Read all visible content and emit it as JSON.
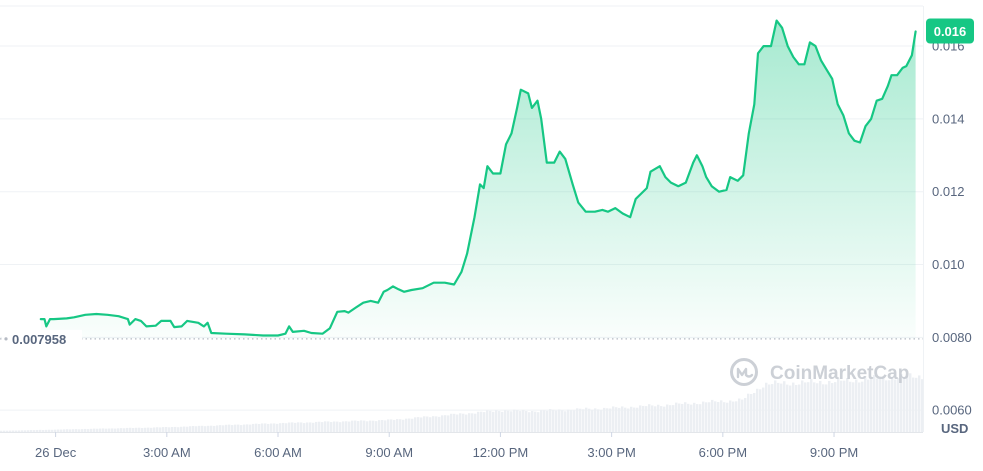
{
  "colors": {
    "line": "#16c784",
    "badge": "#16c784",
    "grid": "#eff2f5",
    "text": "#58667e",
    "volume": "#eceff3",
    "reference": "#b5bac3",
    "watermark": "#c7cbd2"
  },
  "watermark": {
    "icon": "coinmarketcap-logo-icon",
    "text": "CoinMarketCap"
  },
  "chart_data": {
    "type": "area",
    "title": "",
    "xlabel": "",
    "ylabel": "",
    "currency_label": "USD",
    "x_axis": {
      "unit": "hours since 26 Dec 00:00",
      "range": [
        -1.5,
        23.4
      ],
      "ticks": [
        {
          "x": 0,
          "label": "26 Dec"
        },
        {
          "x": 3,
          "label": "3:00 AM"
        },
        {
          "x": 6,
          "label": "6:00 AM"
        },
        {
          "x": 9,
          "label": "9:00 AM"
        },
        {
          "x": 12,
          "label": "12:00 PM"
        },
        {
          "x": 15,
          "label": "3:00 PM"
        },
        {
          "x": 18,
          "label": "6:00 PM"
        },
        {
          "x": 21,
          "label": "9:00 PM"
        }
      ]
    },
    "y_axis": {
      "range": [
        0.0054,
        0.0171
      ],
      "ticks": [
        {
          "v": 0.006,
          "label": "0.0060"
        },
        {
          "v": 0.008,
          "label": "0.0080"
        },
        {
          "v": 0.01,
          "label": "0.010"
        },
        {
          "v": 0.012,
          "label": "0.012"
        },
        {
          "v": 0.014,
          "label": "0.014"
        },
        {
          "v": 0.016,
          "label": "0.016"
        }
      ],
      "grid": true
    },
    "reference_line": {
      "value": 0.007958,
      "label": "0.007958",
      "style": "dotted"
    },
    "last_price_badge": {
      "value": 0.0164,
      "label": "0.016"
    },
    "series": [
      {
        "kind": "price",
        "points": [
          [
            -0.4,
            0.0085
          ],
          [
            -0.3,
            0.0085
          ],
          [
            -0.25,
            0.0083
          ],
          [
            -0.15,
            0.0085
          ],
          [
            -0.05,
            0.0085
          ],
          [
            0.3,
            0.00852
          ],
          [
            0.5,
            0.00855
          ],
          [
            0.8,
            0.00862
          ],
          [
            1.1,
            0.00864
          ],
          [
            1.4,
            0.00862
          ],
          [
            1.7,
            0.00858
          ],
          [
            1.95,
            0.0085
          ],
          [
            2.0,
            0.00835
          ],
          [
            2.15,
            0.0085
          ],
          [
            2.3,
            0.00845
          ],
          [
            2.45,
            0.0083
          ],
          [
            2.7,
            0.00832
          ],
          [
            2.85,
            0.00845
          ],
          [
            3.1,
            0.00845
          ],
          [
            3.2,
            0.00828
          ],
          [
            3.4,
            0.0083
          ],
          [
            3.55,
            0.00845
          ],
          [
            3.85,
            0.0084
          ],
          [
            4.0,
            0.0083
          ],
          [
            4.1,
            0.0084
          ],
          [
            4.2,
            0.00812
          ],
          [
            4.6,
            0.0081
          ],
          [
            5.1,
            0.00808
          ],
          [
            5.6,
            0.00805
          ],
          [
            6.0,
            0.00805
          ],
          [
            6.2,
            0.0081
          ],
          [
            6.3,
            0.0083
          ],
          [
            6.4,
            0.00815
          ],
          [
            6.7,
            0.00818
          ],
          [
            6.9,
            0.00812
          ],
          [
            7.2,
            0.0081
          ],
          [
            7.4,
            0.00825
          ],
          [
            7.6,
            0.0087
          ],
          [
            7.8,
            0.00872
          ],
          [
            7.9,
            0.00868
          ],
          [
            8.1,
            0.00882
          ],
          [
            8.3,
            0.00895
          ],
          [
            8.5,
            0.009
          ],
          [
            8.7,
            0.00895
          ],
          [
            8.85,
            0.00925
          ],
          [
            8.95,
            0.0093
          ],
          [
            9.1,
            0.0094
          ],
          [
            9.25,
            0.00932
          ],
          [
            9.4,
            0.00925
          ],
          [
            9.6,
            0.0093
          ],
          [
            9.9,
            0.00935
          ],
          [
            10.2,
            0.0095
          ],
          [
            10.5,
            0.0095
          ],
          [
            10.75,
            0.00945
          ],
          [
            10.95,
            0.0098
          ],
          [
            11.1,
            0.0103
          ],
          [
            11.3,
            0.0113
          ],
          [
            11.45,
            0.0122
          ],
          [
            11.55,
            0.0121
          ],
          [
            11.65,
            0.0127
          ],
          [
            11.8,
            0.0125
          ],
          [
            12.0,
            0.0125
          ],
          [
            12.15,
            0.0133
          ],
          [
            12.3,
            0.0136
          ],
          [
            12.45,
            0.0143
          ],
          [
            12.55,
            0.0148
          ],
          [
            12.75,
            0.0147
          ],
          [
            12.85,
            0.0143
          ],
          [
            13.0,
            0.0145
          ],
          [
            13.1,
            0.014
          ],
          [
            13.25,
            0.0128
          ],
          [
            13.45,
            0.0128
          ],
          [
            13.6,
            0.0131
          ],
          [
            13.75,
            0.0129
          ],
          [
            13.95,
            0.0122
          ],
          [
            14.1,
            0.0117
          ],
          [
            14.3,
            0.01145
          ],
          [
            14.55,
            0.01145
          ],
          [
            14.75,
            0.0115
          ],
          [
            14.9,
            0.01145
          ],
          [
            15.1,
            0.01155
          ],
          [
            15.3,
            0.0114
          ],
          [
            15.5,
            0.0113
          ],
          [
            15.65,
            0.0118
          ],
          [
            15.8,
            0.01195
          ],
          [
            15.95,
            0.0121
          ],
          [
            16.05,
            0.01255
          ],
          [
            16.3,
            0.0127
          ],
          [
            16.45,
            0.0124
          ],
          [
            16.6,
            0.01225
          ],
          [
            16.8,
            0.01215
          ],
          [
            17.0,
            0.01225
          ],
          [
            17.2,
            0.0128
          ],
          [
            17.3,
            0.013
          ],
          [
            17.45,
            0.0127
          ],
          [
            17.55,
            0.0124
          ],
          [
            17.7,
            0.01215
          ],
          [
            17.9,
            0.012
          ],
          [
            18.1,
            0.01205
          ],
          [
            18.2,
            0.0124
          ],
          [
            18.4,
            0.0123
          ],
          [
            18.55,
            0.01245
          ],
          [
            18.7,
            0.0136
          ],
          [
            18.85,
            0.0144
          ],
          [
            18.95,
            0.0158
          ],
          [
            19.1,
            0.016
          ],
          [
            19.3,
            0.016
          ],
          [
            19.45,
            0.0167
          ],
          [
            19.6,
            0.0165
          ],
          [
            19.75,
            0.016
          ],
          [
            19.9,
            0.0157
          ],
          [
            20.05,
            0.0155
          ],
          [
            20.2,
            0.0155
          ],
          [
            20.35,
            0.0161
          ],
          [
            20.5,
            0.016
          ],
          [
            20.65,
            0.0156
          ],
          [
            20.8,
            0.01535
          ],
          [
            20.95,
            0.0151
          ],
          [
            21.1,
            0.0144
          ],
          [
            21.25,
            0.0141
          ],
          [
            21.4,
            0.0136
          ],
          [
            21.55,
            0.0134
          ],
          [
            21.7,
            0.01335
          ],
          [
            21.85,
            0.0138
          ],
          [
            22.0,
            0.014
          ],
          [
            22.15,
            0.0145
          ],
          [
            22.3,
            0.01455
          ],
          [
            22.45,
            0.0149
          ],
          [
            22.55,
            0.0152
          ],
          [
            22.7,
            0.0152
          ],
          [
            22.85,
            0.0154
          ],
          [
            22.95,
            0.01545
          ],
          [
            23.1,
            0.01575
          ],
          [
            23.2,
            0.0164
          ]
        ]
      }
    ],
    "volume": {
      "relative_levels": [
        [
          -1.5,
          0.015
        ],
        [
          0,
          0.03
        ],
        [
          3,
          0.06
        ],
        [
          6,
          0.11
        ],
        [
          9,
          0.15
        ],
        [
          10.5,
          0.21
        ],
        [
          12.0,
          0.27
        ],
        [
          12.8,
          0.26
        ],
        [
          15,
          0.3
        ],
        [
          16.5,
          0.34
        ],
        [
          18.5,
          0.4
        ],
        [
          19.1,
          0.6
        ],
        [
          21,
          0.63
        ],
        [
          22.5,
          0.68
        ],
        [
          23.4,
          0.7
        ]
      ]
    }
  }
}
